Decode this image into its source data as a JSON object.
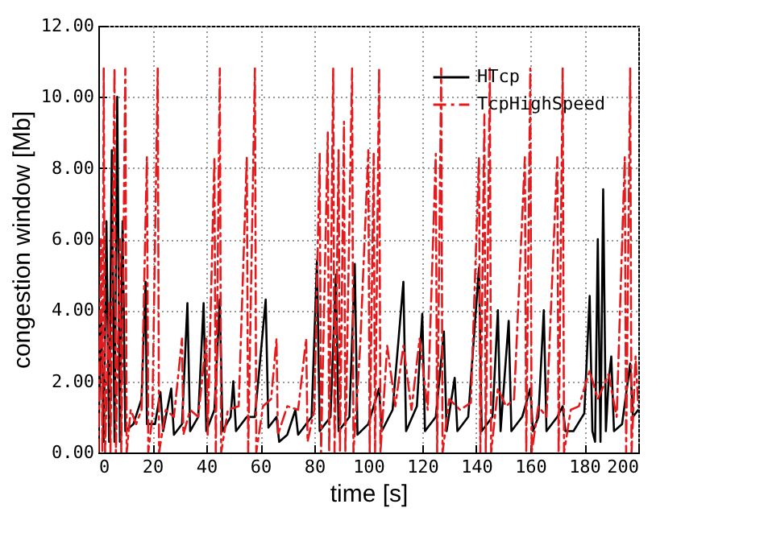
{
  "chart_data": {
    "type": "line",
    "xlabel": "time [s]",
    "ylabel": "congestion window [Mb]",
    "xlim": [
      0,
      200
    ],
    "xticks": [
      0,
      20,
      40,
      60,
      80,
      100,
      120,
      140,
      160,
      180,
      200
    ],
    "ylim": [
      0,
      12
    ],
    "yticks": [
      {
        "value": 0,
        "label": "0.00"
      },
      {
        "value": 2,
        "label": "2.00"
      },
      {
        "value": 4,
        "label": "4.00"
      },
      {
        "value": 6,
        "label": "6.00"
      },
      {
        "value": 8,
        "label": "8.00"
      },
      {
        "value": 10,
        "label": "10.00"
      },
      {
        "value": 12,
        "label": "12.00"
      }
    ],
    "grid": true,
    "legend": "top right",
    "series": [
      {
        "name": "HTcp",
        "color": "#000000",
        "line_style": "solid",
        "x": [
          0,
          1,
          2,
          3,
          4,
          5,
          6,
          7,
          8,
          9,
          10,
          13,
          16,
          17.5,
          18,
          21,
          23,
          24,
          27,
          28,
          31,
          33,
          34,
          37,
          39,
          40,
          43,
          45,
          46,
          49,
          50,
          51,
          55,
          58,
          62,
          63,
          66,
          67,
          70,
          73,
          74,
          79,
          81,
          82,
          86,
          88,
          89,
          93,
          95,
          96,
          100,
          104,
          105,
          109,
          113,
          114,
          118,
          120,
          121,
          125,
          128,
          129,
          132,
          133,
          137,
          141,
          142,
          146,
          148,
          149,
          152,
          153,
          157,
          160,
          161,
          163,
          165,
          166,
          170,
          172,
          173,
          176,
          180,
          182,
          183,
          184,
          185,
          186,
          187,
          188,
          189,
          190,
          191,
          194,
          197,
          198,
          200
        ],
        "values": [
          0,
          4,
          0.3,
          6.5,
          0.3,
          8.5,
          0.3,
          10,
          0.3,
          6.5,
          0.6,
          0.8,
          1.5,
          4.8,
          0.8,
          0.8,
          1.7,
          0.6,
          1.8,
          0.5,
          0.8,
          4.2,
          0.6,
          1,
          4.2,
          0.6,
          1.2,
          4.3,
          0.6,
          1,
          2,
          0.6,
          1,
          1,
          4.3,
          0.7,
          1,
          0.3,
          0.5,
          1.2,
          0.5,
          1,
          5.4,
          0.6,
          1,
          5,
          0.6,
          1,
          5.3,
          0.5,
          0.8,
          1.8,
          0.6,
          1.2,
          4.8,
          0.6,
          1.3,
          3.9,
          0.6,
          1,
          3.4,
          0.6,
          2.1,
          0.6,
          1,
          5.2,
          0.6,
          1,
          4,
          0.6,
          3.7,
          0.6,
          1,
          1.8,
          0.6,
          1,
          4,
          0.6,
          1,
          1.3,
          0.6,
          0.6,
          1.1,
          4.4,
          0.6,
          0.3,
          6,
          0.3,
          7.4,
          0.6,
          2,
          2.7,
          0.6,
          0.8,
          2.5,
          1,
          1.2
        ]
      },
      {
        "name": "TcpHighSpeed",
        "color": "#e41a1c",
        "line_style": "dashed",
        "x": [
          0,
          1,
          1.5,
          2,
          2.5,
          4,
          4.5,
          6,
          6.5,
          8,
          8.5,
          10,
          10.5,
          12,
          14,
          16,
          18,
          18.5,
          20,
          22,
          22.5,
          25,
          28,
          31,
          31.5,
          34,
          37,
          40,
          40.5,
          43,
          43.5,
          45,
          45.5,
          48,
          52,
          55,
          55.5,
          58,
          58.5,
          61,
          64,
          66,
          66.5,
          70,
          74,
          77,
          77.5,
          80,
          82,
          82.5,
          85,
          85.5,
          87,
          87.5,
          89,
          89.5,
          91,
          91.5,
          94,
          94.5,
          97,
          100,
          100.5,
          102,
          102.5,
          104,
          104.5,
          107,
          110,
          113,
          116,
          119,
          122,
          125,
          125.5,
          127,
          127.5,
          130,
          134,
          138,
          141,
          141.5,
          143,
          143.5,
          145,
          145.5,
          148,
          151,
          154,
          158,
          158.5,
          160,
          160.5,
          163,
          166,
          170,
          170.5,
          172,
          172.5,
          175,
          178,
          182,
          185,
          189,
          192,
          195,
          195.5,
          197,
          197.5,
          199,
          200
        ],
        "values": [
          0,
          6,
          0,
          10.8,
          0,
          4.2,
          0,
          10.8,
          0,
          6,
          0,
          10.8,
          0,
          1.2,
          0.8,
          1.2,
          8.3,
          0,
          1,
          10.8,
          0,
          1.2,
          1,
          3.2,
          0.5,
          1.2,
          1,
          3.2,
          0.5,
          8.3,
          0,
          10.8,
          0,
          1.2,
          1.3,
          8.3,
          0,
          10.8,
          0,
          1.3,
          1.5,
          3.2,
          0.5,
          1.3,
          1.2,
          3.2,
          0.3,
          1.2,
          8.4,
          0,
          9,
          0,
          10.8,
          0,
          8.5,
          0,
          9.3,
          0,
          10.8,
          0,
          3,
          8.5,
          0,
          8.4,
          0,
          10.8,
          0,
          3,
          1.3,
          3,
          1.2,
          3.2,
          1.2,
          8.4,
          0,
          10.8,
          0,
          1.5,
          1.2,
          1.4,
          8.3,
          0,
          9.5,
          0,
          10.8,
          0,
          1.8,
          1.3,
          1.5,
          8.3,
          0,
          10.8,
          0,
          1.3,
          1,
          8.3,
          0,
          10.8,
          0,
          1.2,
          1.3,
          2.3,
          1.5,
          2.2,
          1,
          8.3,
          0,
          10.8,
          0,
          2.7,
          1.3
        ]
      }
    ]
  }
}
